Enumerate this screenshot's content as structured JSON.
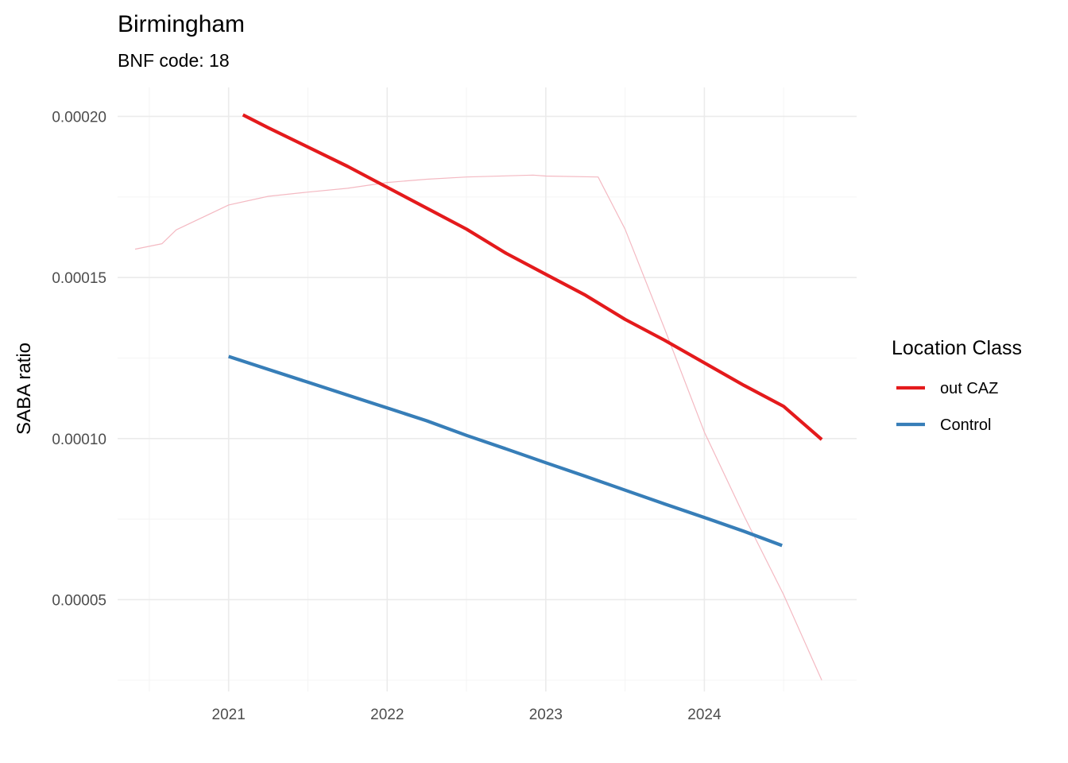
{
  "chart_data": {
    "type": "line",
    "title": "Birmingham",
    "subtitle": "BNF code: 18",
    "xlabel": "",
    "ylabel": "SABA ratio",
    "xlim": [
      2020.3,
      2024.96
    ],
    "ylim": [
      2.15e-05,
      0.000209
    ],
    "x_ticks": [
      2021,
      2022,
      2023,
      2024
    ],
    "x_tick_labels": [
      "2021",
      "2022",
      "2023",
      "2024"
    ],
    "y_ticks": [
      5e-05,
      0.0001,
      0.00015,
      0.0002
    ],
    "y_tick_labels": [
      "0.00005",
      "0.00010",
      "0.00015",
      "0.00020"
    ],
    "grid": true,
    "legend": {
      "title": "Location Class",
      "position": "right"
    },
    "series": [
      {
        "name": "out CAZ",
        "color": "#e41a1c",
        "style": "thick",
        "points": [
          [
            2021.09,
            0.0002005
          ],
          [
            2021.25,
            0.0001965
          ],
          [
            2021.5,
            0.0001905
          ],
          [
            2021.75,
            0.0001845
          ],
          [
            2022.0,
            0.000178
          ],
          [
            2022.25,
            0.0001715
          ],
          [
            2022.5,
            0.000165
          ],
          [
            2022.75,
            0.0001575
          ],
          [
            2023.0,
            0.000151
          ],
          [
            2023.25,
            0.0001445
          ],
          [
            2023.5,
            0.000137
          ],
          [
            2023.75,
            0.0001305
          ],
          [
            2024.0,
            0.0001235
          ],
          [
            2024.25,
            0.0001165
          ],
          [
            2024.5,
            0.00011
          ],
          [
            2024.74,
            9.97e-05
          ]
        ]
      },
      {
        "name": "Control",
        "color": "#377eb8",
        "style": "thick",
        "points": [
          [
            2021.0,
            0.0001255
          ],
          [
            2021.25,
            0.0001215
          ],
          [
            2021.5,
            0.0001175
          ],
          [
            2021.75,
            0.0001135
          ],
          [
            2022.0,
            0.0001095
          ],
          [
            2022.25,
            0.0001055
          ],
          [
            2022.5,
            0.000101
          ],
          [
            2022.75,
            9.68e-05
          ],
          [
            2023.0,
            9.25e-05
          ],
          [
            2023.25,
            8.83e-05
          ],
          [
            2023.5,
            8.4e-05
          ],
          [
            2023.75,
            7.97e-05
          ],
          [
            2024.0,
            7.55e-05
          ],
          [
            2024.25,
            7.12e-05
          ],
          [
            2024.49,
            6.68e-05
          ]
        ]
      },
      {
        "color": "#f4b9c2",
        "style": "thin",
        "points": [
          [
            2020.41,
            0.0001588
          ],
          [
            2020.58,
            0.0001605
          ],
          [
            2020.67,
            0.0001648
          ],
          [
            2021.0,
            0.0001725
          ],
          [
            2021.25,
            0.0001752
          ],
          [
            2021.5,
            0.0001765
          ],
          [
            2021.75,
            0.0001777
          ],
          [
            2022.0,
            0.0001795
          ],
          [
            2022.25,
            0.0001805
          ],
          [
            2022.5,
            0.0001812
          ],
          [
            2022.92,
            0.0001818
          ],
          [
            2023.0,
            0.0001815
          ],
          [
            2023.33,
            0.0001812
          ],
          [
            2023.5,
            0.000165
          ],
          [
            2023.75,
            0.000134
          ],
          [
            2024.0,
            0.000102
          ],
          [
            2024.25,
            7.6e-05
          ],
          [
            2024.5,
            5.15e-05
          ],
          [
            2024.74,
            2.5e-05
          ]
        ]
      }
    ]
  }
}
